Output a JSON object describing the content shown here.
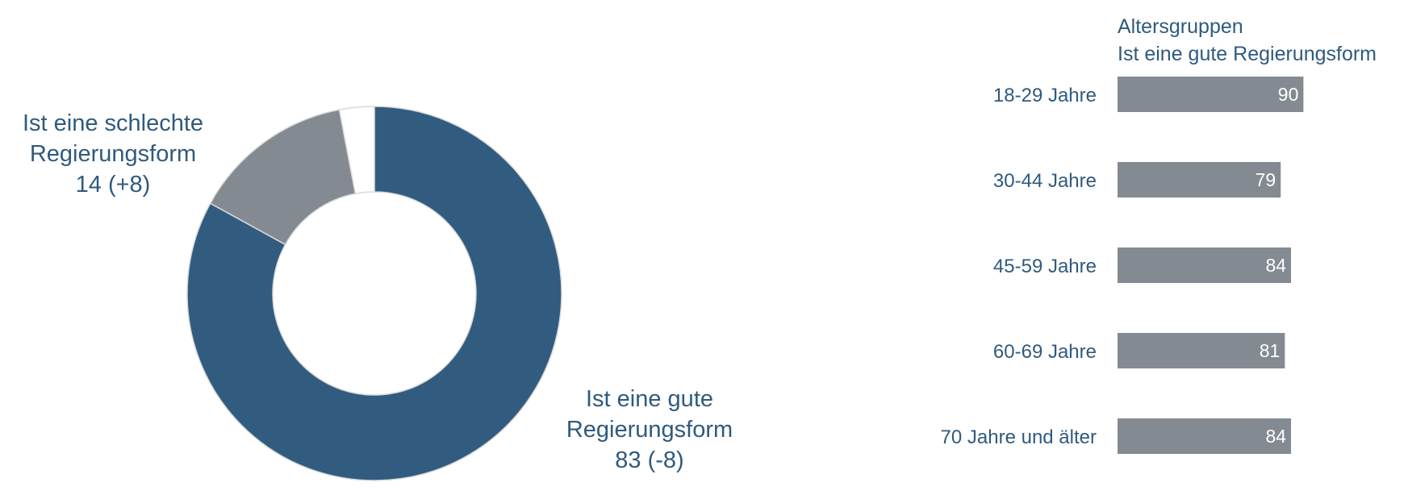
{
  "colors": {
    "good": "#315c80",
    "bad": "#848a91",
    "other": "#ffffff",
    "bar": "#848a91",
    "label_text": "#2f5a7e",
    "bar_value_text": "#ffffff"
  },
  "donut": {
    "good_label": {
      "line1": "Ist eine gute",
      "line2": "Regierungsform",
      "line3": "83 (-8)"
    },
    "bad_label": {
      "line1": "Ist eine schlechte",
      "line2": "Regierungsform",
      "line3": "14 (+8)"
    }
  },
  "bars": {
    "heading_line1": "Altersgruppen",
    "heading_line2": "Ist eine gute Regierungsform"
  },
  "chart_data": [
    {
      "type": "pie",
      "categories": [
        "Ist eine gute Regierungsform",
        "Ist eine schlechte Regierungsform",
        ""
      ],
      "values": [
        83,
        14,
        3
      ],
      "changes": [
        "-8",
        "+8",
        ""
      ]
    },
    {
      "type": "bar",
      "orientation": "horizontal",
      "title": "Altersgruppen",
      "subtitle": "Ist eine gute Regierungsform",
      "categories": [
        "18-29 Jahre",
        "30-44 Jahre",
        "45-59 Jahre",
        "60-69 Jahre",
        "70 Jahre und älter"
      ],
      "values": [
        90,
        79,
        84,
        81,
        84
      ]
    }
  ]
}
